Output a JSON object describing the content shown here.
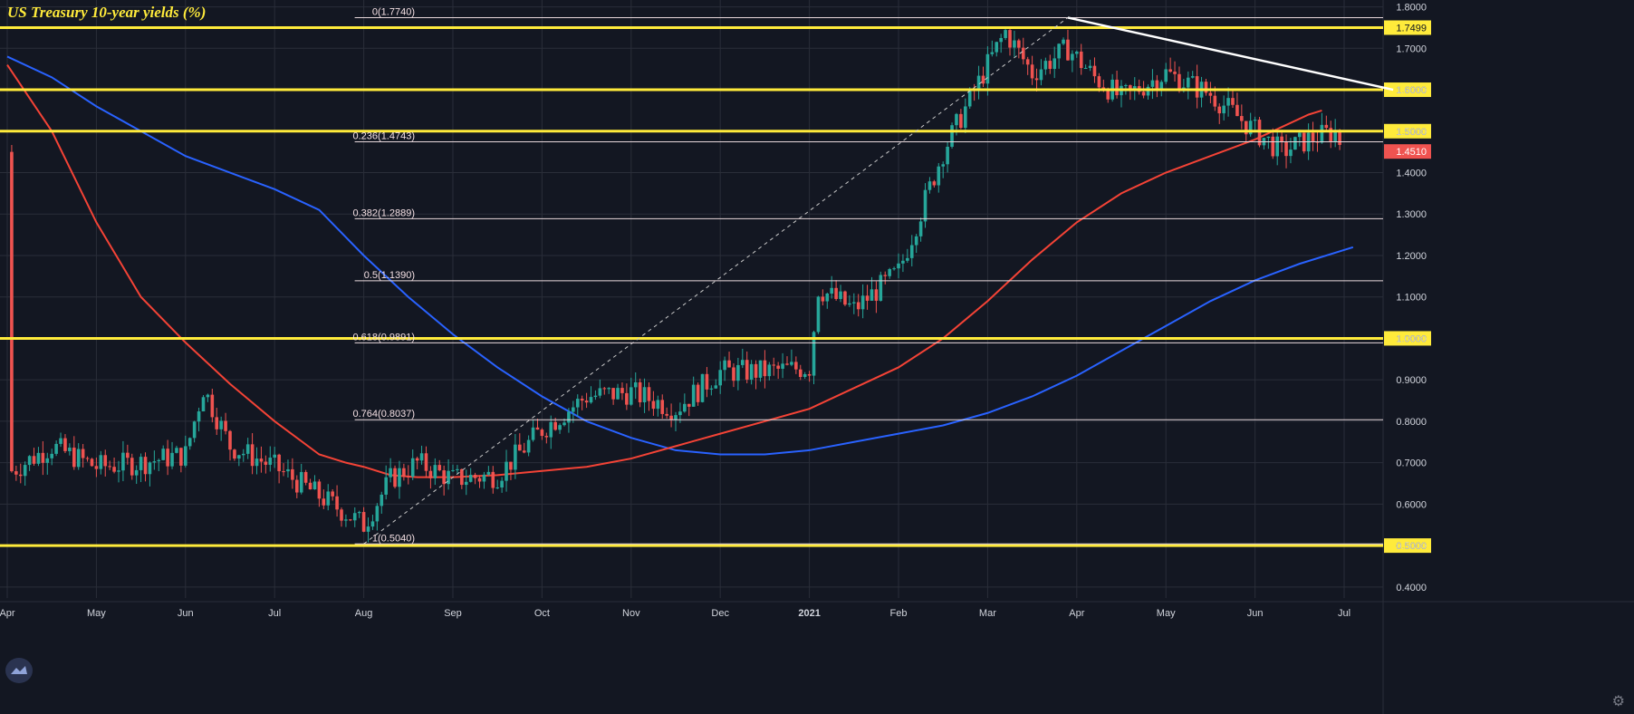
{
  "title": "US Treasury 10-year yields (%)",
  "colors": {
    "background": "#131722",
    "grid": "#2a2e39",
    "up": "#26a69a",
    "down": "#ef5350",
    "ma_fast": "#f44336",
    "ma_slow": "#2962ff",
    "level": "#ffeb3b",
    "fib": "#e8d8dc",
    "trendline": "#ffffff"
  },
  "icons": {
    "logo": "tradingview-logo-icon",
    "settings": "gear-icon"
  },
  "chart_data": {
    "type": "line",
    "title": "US Treasury 10-year yields (%)",
    "ylim": [
      0.38,
      1.81
    ],
    "y_ticks": [
      "1.8000",
      "1.7000",
      "1.6000",
      "1.5000",
      "1.4000",
      "1.3000",
      "1.2000",
      "1.1000",
      "1.0000",
      "0.9000",
      "0.8000",
      "0.7000",
      "0.6000",
      "0.5000",
      "0.4000"
    ],
    "y_tick_values": [
      1.8,
      1.7,
      1.6,
      1.5,
      1.4,
      1.3,
      1.2,
      1.1,
      1.0,
      0.9,
      0.8,
      0.7,
      0.6,
      0.5,
      0.4
    ],
    "x_ticks": [
      "Apr",
      "May",
      "Jun",
      "Jul",
      "Aug",
      "Sep",
      "Oct",
      "Nov",
      "Dec",
      "2021",
      "Feb",
      "Mar",
      "Apr",
      "May",
      "Jun",
      "Jul"
    ],
    "last_price": "1.4510",
    "last_price_value": 1.451,
    "horizontal_levels": [
      {
        "value": 1.7499,
        "label": "1.7499"
      },
      {
        "value": 1.6,
        "label": "1.6000"
      },
      {
        "value": 1.5,
        "label": "1.5000"
      },
      {
        "value": 1.0,
        "label": "1.0000"
      },
      {
        "value": 0.5,
        "label": "0.5000"
      }
    ],
    "fibonacci": [
      {
        "ratio_label": "0(1.7740)",
        "value": 1.774
      },
      {
        "ratio_label": "0.236(1.4743)",
        "value": 1.4743
      },
      {
        "ratio_label": "0.382(1.2889)",
        "value": 1.2889
      },
      {
        "ratio_label": "0.5(1.1390)",
        "value": 1.139
      },
      {
        "ratio_label": "0.618(0.9891)",
        "value": 0.9891
      },
      {
        "ratio_label": "0.764(0.8037)",
        "value": 0.8037
      },
      {
        "ratio_label": "1(0.5040)",
        "value": 0.504
      }
    ],
    "fib_anchor": {
      "start_month": 4.0,
      "start_value": 0.504,
      "end_month": 11.9,
      "end_value": 1.774
    },
    "trendline": {
      "start_month": 11.9,
      "start_value": 1.774,
      "end_month": 15.55,
      "end_value": 1.6
    },
    "series": [
      {
        "type": "candlestick",
        "x": [
          0.05,
          0.5,
          1,
          1.5,
          2,
          2.2,
          2.5,
          3,
          3.5,
          4,
          4.3,
          4.6,
          5,
          5.5,
          6,
          6.5,
          7,
          7.5,
          8,
          8.5,
          9,
          9.1,
          9.5,
          10,
          10.5,
          11,
          11.2,
          11.5,
          11.9,
          12.2,
          12.5,
          13,
          13.5,
          14,
          14.3,
          14.6,
          14.9,
          15
        ],
        "close": [
          0.68,
          0.74,
          0.69,
          0.7,
          0.72,
          0.88,
          0.74,
          0.69,
          0.62,
          0.55,
          0.66,
          0.7,
          0.66,
          0.67,
          0.78,
          0.86,
          0.87,
          0.83,
          0.92,
          0.92,
          0.93,
          1.12,
          1.07,
          1.16,
          1.45,
          1.66,
          1.74,
          1.64,
          1.7,
          1.63,
          1.58,
          1.64,
          1.59,
          1.5,
          1.45,
          1.48,
          1.5,
          1.45
        ]
      },
      {
        "type": "line",
        "label_role": "moving-average-fast",
        "x": [
          0,
          0.5,
          1,
          1.5,
          2,
          2.5,
          3,
          3.5,
          3.8,
          4,
          4.3,
          4.6,
          5,
          5.5,
          6,
          6.5,
          7,
          7.5,
          8,
          8.5,
          9,
          9.5,
          10,
          10.5,
          11,
          11.5,
          12,
          12.5,
          13,
          13.5,
          14,
          14.3,
          14.6,
          14.75
        ],
        "y": [
          1.66,
          1.5,
          1.28,
          1.1,
          0.99,
          0.89,
          0.8,
          0.72,
          0.7,
          0.69,
          0.67,
          0.665,
          0.665,
          0.67,
          0.68,
          0.69,
          0.71,
          0.74,
          0.77,
          0.8,
          0.83,
          0.88,
          0.93,
          1.0,
          1.09,
          1.19,
          1.28,
          1.35,
          1.4,
          1.44,
          1.48,
          1.51,
          1.54,
          1.55
        ]
      },
      {
        "type": "line",
        "label_role": "moving-average-slow",
        "x": [
          0,
          0.5,
          1,
          1.5,
          2,
          2.5,
          3,
          3.5,
          4,
          4.5,
          5,
          5.5,
          6,
          6.5,
          7,
          7.5,
          8,
          8.5,
          9,
          9.5,
          10,
          10.5,
          11,
          11.5,
          12,
          12.5,
          13,
          13.5,
          14,
          14.5,
          15.1
        ],
        "y": [
          1.68,
          1.63,
          1.56,
          1.5,
          1.44,
          1.4,
          1.36,
          1.31,
          1.2,
          1.1,
          1.01,
          0.93,
          0.86,
          0.8,
          0.76,
          0.73,
          0.72,
          0.72,
          0.73,
          0.75,
          0.77,
          0.79,
          0.82,
          0.86,
          0.91,
          0.97,
          1.03,
          1.09,
          1.14,
          1.18,
          1.22
        ]
      }
    ]
  }
}
